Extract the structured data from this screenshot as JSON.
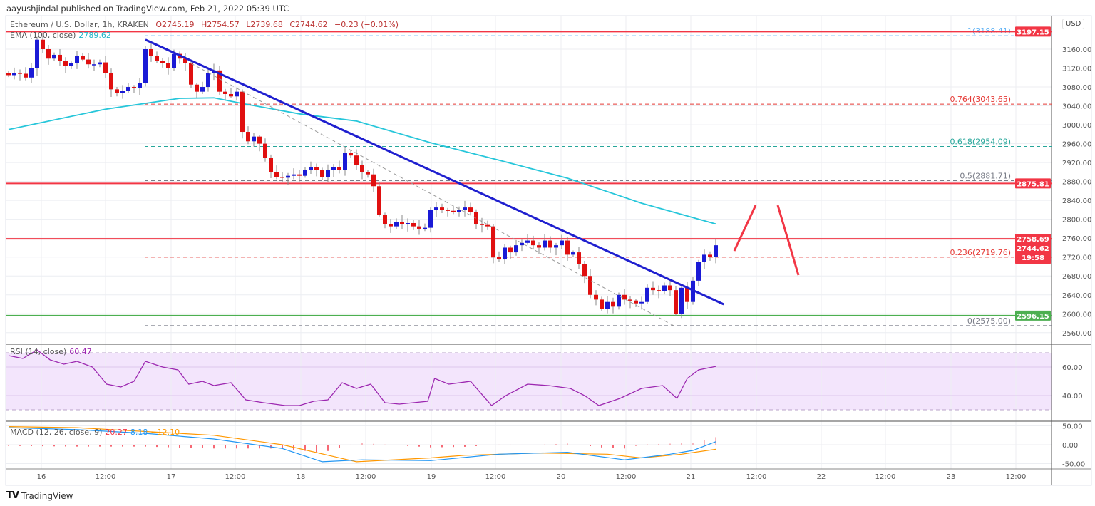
{
  "header": {
    "published": "aayushjindal published on TradingView.com, Feb 21, 2022 05:39 UTC",
    "symbol": "Ethereum / U.S. Dollar, 1h, KRAKEN",
    "open": "O2745.19",
    "high": "H2754.57",
    "low": "L2739.68",
    "close": "C2744.62",
    "change": "−0.23 (−0.01%)",
    "currency": "USD"
  },
  "indicators": {
    "ema_label": "EMA (100, close)",
    "ema_value": "2789.62",
    "rsi_label": "RSI (14, close)",
    "rsi_value": "60.47",
    "macd_label": "MACD (12, 26, close, 9)",
    "macd_hist": "20.27",
    "macd_line": "8.18",
    "macd_signal": "−12.10"
  },
  "footer": {
    "logo_text": "TradingView",
    "logo_mark": "TV"
  },
  "colors": {
    "up": "#1a1ad6",
    "down": "#e01010",
    "ema": "#26c6da",
    "rsi": "#9c27b0",
    "trend": "#1f1fcf",
    "level": "#f23645",
    "support": "#4caf50"
  },
  "chart_data": {
    "type": "candlestick",
    "title": "Ethereum / U.S. Dollar, 1h, KRAKEN",
    "ylim": [
      2540,
      3210
    ],
    "price_ticks": [
      "3160.00",
      "3120.00",
      "3080.00",
      "3040.00",
      "3000.00",
      "2960.00",
      "2920.00",
      "2880.00",
      "2840.00",
      "2800.00",
      "2760.00",
      "2720.00",
      "2680.00",
      "2640.00",
      "2600.00",
      "2560.00"
    ],
    "time_ticks": [
      "16",
      "12:00",
      "17",
      "12:00",
      "18",
      "12:00",
      "19",
      "12:00",
      "20",
      "12:00",
      "21",
      "12:00",
      "22",
      "12:00",
      "23",
      "12:00"
    ],
    "closes": [
      3105,
      3110,
      3108,
      3100,
      3120,
      3180,
      3160,
      3140,
      3148,
      3135,
      3125,
      3130,
      3145,
      3138,
      3128,
      3128,
      3132,
      3110,
      3075,
      3068,
      3072,
      3080,
      3078,
      3088,
      3160,
      3145,
      3135,
      3130,
      3120,
      3150,
      3140,
      3130,
      3085,
      3070,
      3080,
      3110,
      3115,
      3070,
      3065,
      3060,
      3070,
      2985,
      2965,
      2975,
      2960,
      2930,
      2900,
      2890,
      2888,
      2892,
      2895,
      2892,
      2905,
      2910,
      2905,
      2890,
      2905,
      2910,
      2905,
      2940,
      2935,
      2915,
      2900,
      2895,
      2870,
      2810,
      2790,
      2785,
      2795,
      2790,
      2792,
      2785,
      2780,
      2782,
      2820,
      2825,
      2820,
      2818,
      2815,
      2820,
      2825,
      2815,
      2790,
      2788,
      2785,
      2720,
      2715,
      2740,
      2730,
      2745,
      2750,
      2755,
      2745,
      2740,
      2755,
      2740,
      2745,
      2755,
      2725,
      2730,
      2705,
      2680,
      2640,
      2630,
      2610,
      2625,
      2615,
      2640,
      2630,
      2628,
      2622,
      2625,
      2655,
      2650,
      2648,
      2660,
      2650,
      2600,
      2655,
      2625,
      2670,
      2710,
      2725,
      2720,
      2745
    ],
    "ema100": [
      [
        0,
        2990
      ],
      [
        17,
        3033
      ],
      [
        30,
        3056
      ],
      [
        36,
        3057
      ],
      [
        41,
        3045
      ],
      [
        51,
        3023
      ],
      [
        61,
        3008
      ],
      [
        74,
        2962
      ],
      [
        86,
        2925
      ],
      [
        98,
        2887
      ],
      [
        111,
        2834
      ],
      [
        124,
        2790
      ]
    ],
    "levels": [
      {
        "label": "3197.15",
        "value": 3197.15,
        "color": "#f23645"
      },
      {
        "label": "2875.81",
        "value": 2875.81,
        "color": "#f23645"
      },
      {
        "label": "2758.69",
        "value": 2758.69,
        "color": "#f23645"
      },
      {
        "label": "2596.15",
        "value": 2596.15,
        "color": "#4caf50"
      }
    ],
    "last_price": {
      "label": "2744.62",
      "countdown": "19:58"
    },
    "fib": [
      {
        "label": "1(3188.41)",
        "value": 3188.41,
        "color": "#64b5f6"
      },
      {
        "label": "0.764(3043.65)",
        "value": 3043.65,
        "color": "#e53935"
      },
      {
        "label": "0.618(2954.09)",
        "value": 2954.09,
        "color": "#26a69a"
      },
      {
        "label": "0.5(2881.71)",
        "value": 2881.71,
        "color": "#787b86"
      },
      {
        "label": "0.236(2719.76)",
        "value": 2719.76,
        "color": "#e53935"
      },
      {
        "label": "0(2575.00)",
        "value": 2575.0,
        "color": "#787b86"
      }
    ],
    "trendline": {
      "from": [
        24,
        3180
      ],
      "to": [
        125.4,
        2620
      ]
    },
    "dashed_channel": {
      "from": [
        32,
        3130
      ],
      "to": [
        116.6,
        2575
      ]
    },
    "rsi": {
      "ylim": [
        20,
        80
      ],
      "ticks": [
        "60.00",
        "40.00"
      ],
      "band": [
        30,
        70
      ],
      "values": [
        [
          0,
          68
        ],
        [
          2.5,
          66
        ],
        [
          5,
          72
        ],
        [
          7.3,
          65
        ],
        [
          9.7,
          62
        ],
        [
          12,
          64
        ],
        [
          14.7,
          60
        ],
        [
          17.2,
          48
        ],
        [
          19.7,
          46
        ],
        [
          22,
          50
        ],
        [
          24,
          64
        ],
        [
          27,
          60
        ],
        [
          29.7,
          58
        ],
        [
          31.6,
          48
        ],
        [
          34,
          50
        ],
        [
          36,
          47
        ],
        [
          39,
          49
        ],
        [
          41.6,
          37
        ],
        [
          44.7,
          35
        ],
        [
          48.5,
          33
        ],
        [
          51,
          33
        ],
        [
          53.5,
          36
        ],
        [
          56,
          37
        ],
        [
          58.5,
          49
        ],
        [
          61,
          45
        ],
        [
          63.5,
          48
        ],
        [
          66,
          35
        ],
        [
          68.5,
          34
        ],
        [
          71,
          35
        ],
        [
          73.5,
          36
        ],
        [
          74.7,
          52
        ],
        [
          77.2,
          48
        ],
        [
          81,
          50
        ],
        [
          84.7,
          33
        ],
        [
          87.2,
          40
        ],
        [
          91,
          48
        ],
        [
          94.7,
          47
        ],
        [
          98.5,
          45
        ],
        [
          101,
          40
        ],
        [
          103.5,
          33
        ],
        [
          107.2,
          38
        ],
        [
          111,
          45
        ],
        [
          114.7,
          47
        ],
        [
          117.2,
          38
        ],
        [
          119,
          52
        ],
        [
          121,
          58
        ],
        [
          124,
          60.47
        ]
      ]
    },
    "macd": {
      "ylim": [
        -60,
        60
      ],
      "ticks": [
        "50.00",
        "0.00",
        "-50.00"
      ],
      "macd_line": [
        [
          0,
          45
        ],
        [
          12,
          40
        ],
        [
          24,
          30
        ],
        [
          36,
          15
        ],
        [
          48,
          -10
        ],
        [
          55,
          -45
        ],
        [
          62,
          -40
        ],
        [
          74,
          -42
        ],
        [
          86,
          -25
        ],
        [
          98,
          -20
        ],
        [
          108,
          -40
        ],
        [
          116,
          -25
        ],
        [
          120,
          -15
        ],
        [
          124,
          8
        ]
      ],
      "signal_line": [
        [
          0,
          48
        ],
        [
          12,
          45
        ],
        [
          24,
          35
        ],
        [
          36,
          25
        ],
        [
          48,
          0
        ],
        [
          61,
          -45
        ],
        [
          74,
          -35
        ],
        [
          80,
          -28
        ],
        [
          93,
          -22
        ],
        [
          105,
          -25
        ],
        [
          111,
          -35
        ],
        [
          118,
          -25
        ],
        [
          124,
          -12
        ]
      ]
    }
  }
}
